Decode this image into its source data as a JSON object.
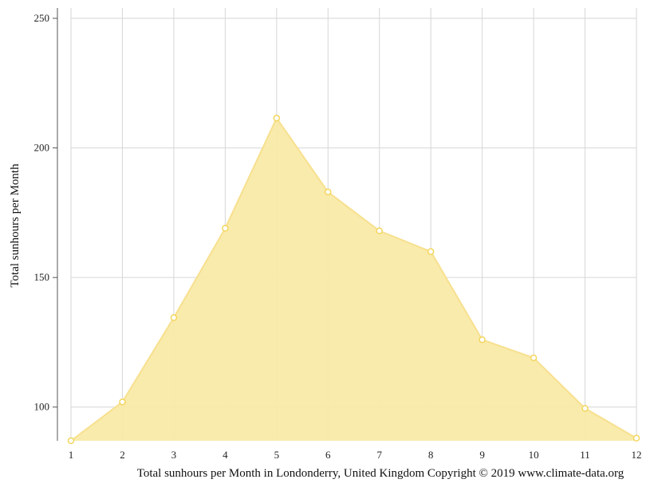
{
  "chart_data": {
    "type": "area",
    "x": [
      1,
      2,
      3,
      4,
      5,
      6,
      7,
      8,
      9,
      10,
      11,
      12
    ],
    "series": [
      {
        "values": [
          87,
          102,
          134.5,
          169,
          211.5,
          183,
          168,
          160,
          126,
          119,
          99.5,
          88
        ]
      }
    ],
    "xlabel": "Total sunhours per Month in Londonderry, United Kingdom Copyright © 2019 www.climate-data.org",
    "ylabel": "Total sunhours per Month",
    "x_ticks": [
      "1",
      "2",
      "3",
      "4",
      "5",
      "6",
      "7",
      "8",
      "9",
      "10",
      "11",
      "12"
    ],
    "y_ticks": [
      100,
      150,
      200,
      250
    ],
    "ylim": [
      87,
      254
    ],
    "xlim": [
      1,
      12
    ],
    "grid": true,
    "legend": "none",
    "colors": {
      "fill": "#f9eaa6",
      "line": "#f7e08f",
      "marker_stroke": "#f3d65c",
      "marker_fill": "#ffffff",
      "grid": "#d6d6d6",
      "axis": "#555555"
    }
  }
}
